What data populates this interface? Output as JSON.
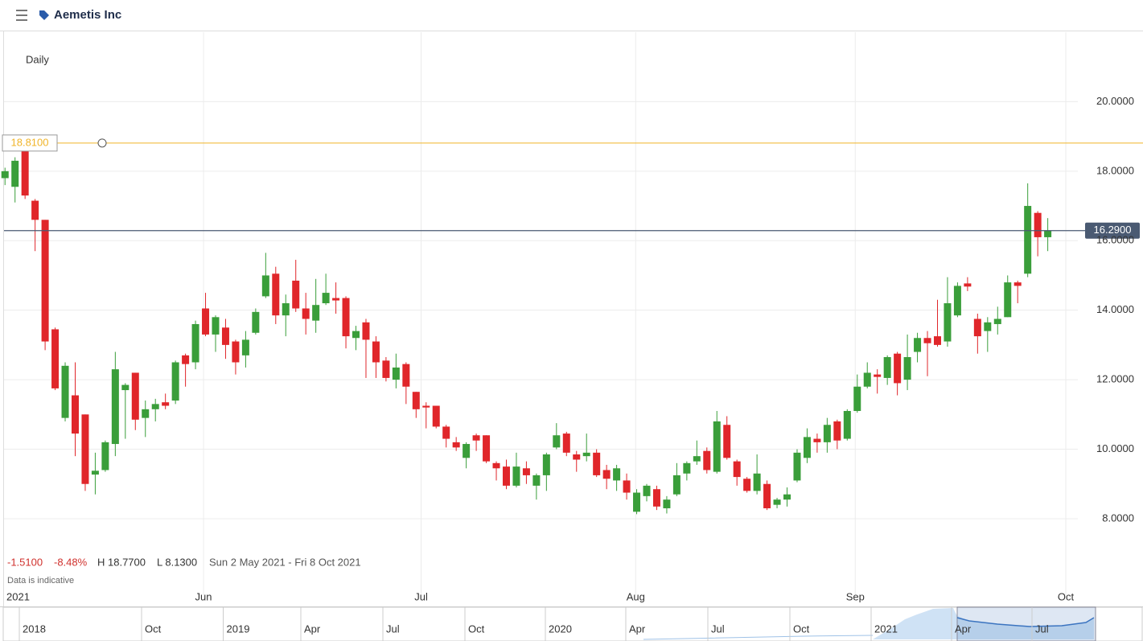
{
  "header": {
    "title": "Aemetis Inc"
  },
  "chart_data": {
    "type": "candlestick",
    "interval": "Daily",
    "up_color": "#3a9e3a",
    "down_color": "#e0262a",
    "open": [
      17.8,
      17.55,
      18.65,
      17.15,
      16.6,
      13.45,
      10.9,
      11.55,
      11.0,
      9.27,
      9.4,
      10.15,
      11.7,
      12.2,
      10.9,
      11.15,
      11.35,
      11.4,
      12.7,
      12.5,
      14.05,
      13.3,
      13.5,
      13.1,
      12.7,
      13.35,
      14.4,
      15.05,
      13.85,
      14.85,
      14.05,
      13.7,
      14.2,
      14.35,
      14.35,
      13.2,
      13.65,
      13.1,
      12.55,
      12.0,
      12.45,
      11.65,
      11.25,
      11.25,
      10.65,
      10.2,
      9.75,
      10.4,
      10.4,
      9.6,
      9.5,
      8.95,
      9.45,
      8.95,
      9.25,
      10.05,
      10.45,
      9.85,
      9.8,
      9.9,
      9.4,
      9.1,
      9.1,
      8.2,
      8.65,
      8.85,
      8.3,
      8.7,
      9.3,
      9.65,
      9.95,
      9.35,
      10.7,
      9.65,
      9.15,
      8.8,
      9.0,
      8.4,
      8.55,
      9.1,
      9.75,
      10.3,
      10.2,
      10.8,
      10.3,
      11.1,
      11.8,
      12.15,
      12.05,
      12.75,
      12.0,
      12.8,
      13.2,
      13.25,
      13.1,
      13.85,
      14.77,
      13.75,
      13.4,
      13.6,
      13.8,
      14.8,
      15.05,
      16.8,
      16.1
    ],
    "high": [
      18.1,
      18.4,
      18.77,
      17.2,
      16.6,
      13.5,
      12.5,
      12.5,
      11.0,
      9.9,
      10.25,
      12.8,
      11.9,
      12.2,
      11.4,
      11.45,
      11.6,
      12.55,
      12.75,
      13.7,
      14.5,
      13.85,
      13.75,
      13.15,
      13.4,
      14.05,
      15.65,
      15.25,
      14.45,
      15.45,
      14.5,
      14.9,
      15.05,
      14.8,
      14.4,
      13.55,
      13.75,
      13.25,
      12.65,
      12.75,
      12.5,
      11.65,
      11.35,
      11.25,
      10.7,
      10.35,
      10.2,
      10.45,
      10.4,
      9.65,
      9.7,
      9.9,
      9.65,
      9.3,
      9.9,
      10.75,
      10.5,
      9.95,
      10.45,
      10.0,
      9.55,
      9.55,
      9.3,
      8.85,
      9.0,
      8.95,
      8.65,
      9.6,
      9.65,
      10.25,
      10.05,
      11.1,
      10.95,
      9.7,
      9.2,
      9.85,
      9.1,
      8.6,
      8.9,
      10.0,
      10.6,
      10.45,
      10.9,
      10.85,
      11.15,
      12.15,
      12.5,
      12.3,
      12.7,
      12.8,
      13.3,
      13.35,
      13.4,
      14.3,
      14.95,
      14.8,
      14.95,
      13.9,
      13.8,
      14.1,
      15.0,
      14.85,
      17.65,
      16.85,
      16.65
    ],
    "low": [
      17.6,
      17.1,
      17.2,
      15.7,
      12.85,
      11.7,
      10.8,
      9.8,
      8.8,
      8.7,
      9.35,
      9.8,
      10.3,
      10.55,
      10.35,
      10.8,
      11.15,
      11.3,
      11.8,
      12.3,
      13.25,
      12.8,
      12.6,
      12.15,
      12.35,
      13.3,
      14.35,
      13.6,
      13.25,
      13.95,
      13.3,
      13.35,
      14.15,
      13.9,
      12.9,
      12.85,
      12.05,
      12.05,
      11.95,
      11.75,
      11.3,
      10.9,
      10.6,
      10.6,
      10.05,
      9.95,
      9.45,
      9.95,
      9.6,
      9.1,
      8.85,
      8.9,
      9.0,
      8.55,
      8.8,
      10.0,
      9.8,
      9.35,
      9.65,
      9.2,
      8.85,
      8.8,
      8.55,
      8.13,
      8.5,
      8.25,
      8.15,
      8.65,
      9.1,
      9.55,
      9.3,
      9.3,
      9.7,
      8.95,
      8.75,
      8.7,
      8.25,
      8.3,
      8.35,
      9.05,
      9.6,
      9.9,
      9.9,
      10.0,
      10.25,
      11.05,
      11.75,
      11.6,
      11.85,
      11.55,
      11.7,
      12.5,
      12.1,
      12.95,
      12.95,
      13.8,
      14.55,
      12.75,
      12.8,
      13.3,
      13.8,
      14.2,
      14.95,
      15.55,
      15.7
    ],
    "close": [
      18.0,
      18.3,
      17.3,
      16.6,
      13.1,
      11.75,
      12.4,
      10.45,
      9.0,
      9.38,
      10.2,
      12.3,
      11.85,
      10.85,
      11.15,
      11.3,
      11.25,
      12.5,
      12.45,
      13.6,
      13.3,
      13.8,
      13.0,
      12.5,
      13.15,
      13.95,
      15.0,
      13.85,
      14.2,
      14.05,
      13.75,
      14.15,
      14.5,
      14.28,
      13.25,
      13.4,
      13.15,
      12.5,
      12.05,
      12.35,
      11.8,
      11.15,
      11.2,
      10.65,
      10.3,
      10.05,
      10.15,
      10.25,
      9.65,
      9.45,
      8.95,
      9.5,
      9.25,
      9.25,
      9.85,
      10.4,
      9.9,
      9.7,
      9.9,
      9.25,
      9.15,
      9.45,
      8.75,
      8.75,
      8.95,
      8.35,
      8.55,
      9.25,
      9.6,
      9.8,
      9.4,
      10.8,
      9.75,
      9.2,
      8.8,
      9.3,
      8.3,
      8.55,
      8.7,
      9.9,
      10.35,
      10.2,
      10.7,
      10.25,
      11.1,
      11.8,
      12.2,
      12.08,
      12.65,
      11.9,
      12.65,
      13.2,
      13.05,
      13.0,
      14.2,
      14.7,
      14.68,
      13.25,
      13.65,
      13.75,
      14.8,
      14.7,
      17.0,
      16.1,
      16.29
    ],
    "xlim": [
      -0.5,
      107
    ],
    "xticks": [
      {
        "value": 0,
        "label": "2021"
      },
      {
        "value": 19.8,
        "label": "Jun"
      },
      {
        "value": 41.5,
        "label": "Jul"
      },
      {
        "value": 62.9,
        "label": "Aug"
      },
      {
        "value": 84.8,
        "label": "Sep"
      },
      {
        "value": 105.8,
        "label": "Oct"
      }
    ],
    "ylim": [
      5.8,
      22
    ],
    "yticks": [
      {
        "value": 8,
        "label": "8.0000"
      },
      {
        "value": 10,
        "label": "10.0000"
      },
      {
        "value": 12,
        "label": "12.0000"
      },
      {
        "value": 14,
        "label": "14.0000"
      },
      {
        "value": 16,
        "label": "16.0000"
      },
      {
        "value": 18,
        "label": "18.0000"
      },
      {
        "value": 20,
        "label": "20.0000"
      }
    ],
    "grid": true,
    "reference_line": {
      "value": 18.81,
      "label": "18.8100",
      "color": "#f0b429"
    },
    "last_price": {
      "value": 16.29,
      "label": "16.2900",
      "color": "#4a5a72"
    }
  },
  "stats": {
    "change": "-1.5100",
    "change_percent": "-8.48%",
    "high": "H 18.7700",
    "low": "L 8.1300",
    "range": "Sun 2 May 2021 - Fri 8 Oct 2021",
    "note": "Data is indicative"
  },
  "navigator": {
    "labels": [
      "2018",
      "Oct",
      "2019",
      "Apr",
      "Jul",
      "Oct",
      "2020",
      "Apr",
      "Jul",
      "Oct",
      "2021",
      "Apr",
      "Jul"
    ]
  }
}
